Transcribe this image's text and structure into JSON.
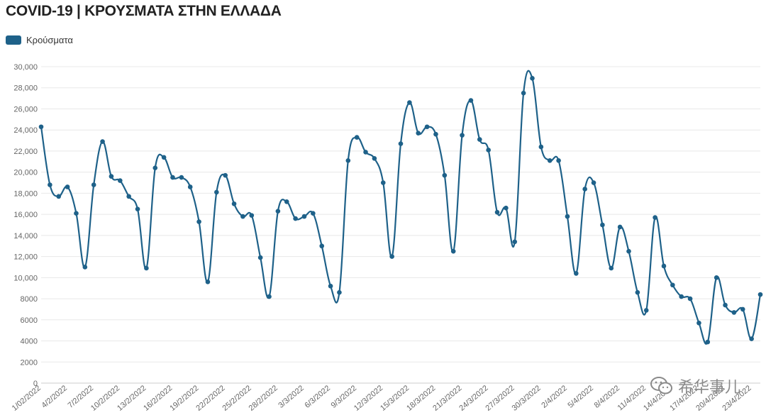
{
  "header": {
    "title": "COVID-19 | ΚΡΟΥΣΜΑΤΑ ΣΤΗΝ ΕΛΛΑΔΑ"
  },
  "legend": {
    "label": "Κρούσματα",
    "color": "#1e6189"
  },
  "watermark": {
    "text": "希华事儿",
    "icon": "wechat-icon"
  },
  "chart_data": {
    "type": "line",
    "title": "COVID-19 | ΚΡΟΥΣΜΑΤΑ ΣΤΗΝ ΕΛΛΑΔΑ",
    "xlabel": "",
    "ylabel": "",
    "ylim": [
      0,
      30000
    ],
    "y_ticks": [
      0,
      2000,
      4000,
      6000,
      8000,
      10000,
      12000,
      14000,
      16000,
      18000,
      20000,
      22000,
      24000,
      26000,
      28000,
      30000
    ],
    "y_tick_labels": [
      "0",
      "2000",
      "4000",
      "6000",
      "8000",
      "10,000",
      "12,000",
      "14,000",
      "16,000",
      "18,000",
      "20,000",
      "22,000",
      "24,000",
      "26,000",
      "28,000",
      "30,000"
    ],
    "x_tick_labels": [
      "1/02/2022",
      "4/2/2022",
      "7/2/2022",
      "10/2/2022",
      "13/2/2022",
      "16/2/2022",
      "19/2/2022",
      "22/2/2022",
      "25/2/2022",
      "28/2/2022",
      "3/3/2022",
      "6/3/2022",
      "9/3/2022",
      "12/3/2022",
      "15/3/2022",
      "18/3/2022",
      "21/3/2022",
      "24/3/2022",
      "27/3/2022",
      "30/3/2022",
      "2/4/2022",
      "5/4/2022",
      "8/4/2022",
      "11/4/2022",
      "14/4/2022",
      "17/4/2022",
      "20/4/2022",
      "23/4/2022"
    ],
    "grid": true,
    "legend_position": "top-left",
    "colors": {
      "line": "#1e6189",
      "grid": "#e8e8e8",
      "axis": "#cccccc"
    },
    "series": [
      {
        "name": "Κρούσματα",
        "x": [
          "1/2/2022",
          "2/2/2022",
          "3/2/2022",
          "4/2/2022",
          "5/2/2022",
          "6/2/2022",
          "7/2/2022",
          "8/2/2022",
          "9/2/2022",
          "10/2/2022",
          "11/2/2022",
          "12/2/2022",
          "13/2/2022",
          "14/2/2022",
          "15/2/2022",
          "16/2/2022",
          "17/2/2022",
          "18/2/2022",
          "19/2/2022",
          "20/2/2022",
          "21/2/2022",
          "22/2/2022",
          "23/2/2022",
          "24/2/2022",
          "25/2/2022",
          "26/2/2022",
          "27/2/2022",
          "28/2/2022",
          "1/3/2022",
          "2/3/2022",
          "3/3/2022",
          "4/3/2022",
          "5/3/2022",
          "6/3/2022",
          "7/3/2022",
          "8/3/2022",
          "9/3/2022",
          "10/3/2022",
          "11/3/2022",
          "12/3/2022",
          "13/3/2022",
          "14/3/2022",
          "15/3/2022",
          "16/3/2022",
          "17/3/2022",
          "18/3/2022",
          "19/3/2022",
          "20/3/2022",
          "21/3/2022",
          "22/3/2022",
          "23/3/2022",
          "24/3/2022",
          "25/3/2022",
          "26/3/2022",
          "27/3/2022",
          "28/3/2022",
          "29/3/2022",
          "30/3/2022",
          "31/3/2022",
          "1/4/2022",
          "2/4/2022",
          "3/4/2022",
          "4/4/2022",
          "5/4/2022",
          "6/4/2022",
          "7/4/2022",
          "8/4/2022",
          "9/4/2022",
          "10/4/2022",
          "11/4/2022",
          "12/4/2022",
          "13/4/2022",
          "14/4/2022",
          "15/4/2022",
          "16/4/2022",
          "17/4/2022",
          "18/4/2022",
          "19/4/2022",
          "20/4/2022",
          "21/4/2022",
          "22/4/2022",
          "23/4/2022",
          "24/4/2022"
        ],
        "values": [
          24300,
          18800,
          17700,
          18600,
          16100,
          11000,
          18800,
          22900,
          19600,
          19200,
          17700,
          16500,
          10900,
          20400,
          21400,
          19500,
          19500,
          18600,
          15300,
          9600,
          18100,
          19700,
          17000,
          15800,
          15900,
          11900,
          8200,
          16300,
          17200,
          15600,
          15800,
          16100,
          13000,
          9200,
          8600,
          21100,
          23300,
          21900,
          21300,
          19000,
          12000,
          22700,
          26600,
          23700,
          24300,
          23600,
          19700,
          12500,
          23500,
          26800,
          23100,
          22100,
          16200,
          16600,
          13400,
          27500,
          28900,
          22400,
          21100,
          21100,
          15800,
          10400,
          18400,
          19000,
          15000,
          10900,
          14800,
          12500,
          8600,
          6900,
          15700,
          11100,
          9300,
          8200,
          8000,
          5700,
          3900,
          10000,
          7400,
          6700,
          7000,
          4200,
          8400
        ]
      }
    ]
  }
}
